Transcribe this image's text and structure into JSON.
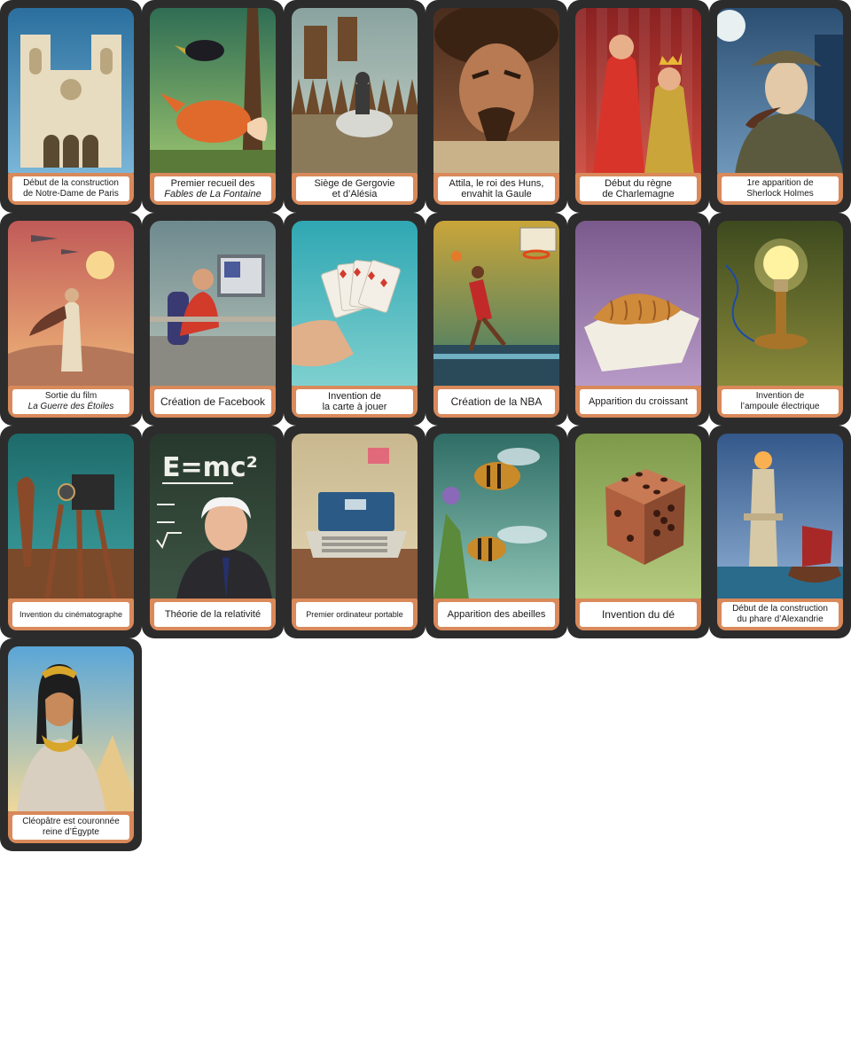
{
  "cards": [
    {
      "id": "notre-dame",
      "lines": [
        "Début de la construction",
        "de Notre-Dame de Paris"
      ],
      "italic": [
        false,
        false
      ],
      "size": "fs-10",
      "scene": "cathedral",
      "colors": {
        "sky": "#2a6f9e",
        "sky2": "#7ab6d8",
        "main": "#e8dcc0",
        "accent": "#b9a67f"
      }
    },
    {
      "id": "fables",
      "lines": [
        "Premier recueil des",
        "Fables de La Fontaine"
      ],
      "italic": [
        false,
        true
      ],
      "size": "fs-11",
      "scene": "fox",
      "colors": {
        "sky": "#2f6d54",
        "sky2": "#9bc46f",
        "main": "#e06a2c",
        "accent": "#1c1c22"
      }
    },
    {
      "id": "alesia",
      "lines": [
        "Siège de Gergovie",
        "et d’Alésia"
      ],
      "italic": [
        false,
        false
      ],
      "size": "fs-11",
      "scene": "siege",
      "colors": {
        "sky": "#8aa3a0",
        "sky2": "#c7d2c5",
        "main": "#6d4a2b",
        "accent": "#3a3a3a"
      }
    },
    {
      "id": "attila",
      "lines": [
        "Attila, le roi des Huns,",
        "envahit la Gaule"
      ],
      "italic": [
        false,
        false
      ],
      "size": "fs-11",
      "scene": "portrait",
      "colors": {
        "sky": "#4a2d1e",
        "sky2": "#8c5a3a",
        "main": "#b77a52",
        "accent": "#3b2314"
      }
    },
    {
      "id": "charlemagne",
      "lines": [
        "Début du règne",
        "de Charlemagne"
      ],
      "italic": [
        false,
        false
      ],
      "size": "fs-11",
      "scene": "crowning",
      "colors": {
        "sky": "#8a2222",
        "sky2": "#c9463a",
        "main": "#d8342a",
        "accent": "#e8b935"
      }
    },
    {
      "id": "sherlock",
      "lines": [
        "1re apparition de",
        "Sherlock Holmes"
      ],
      "italic": [
        false,
        false
      ],
      "size": "fs-10",
      "scene": "detective",
      "colors": {
        "sky": "#2b4f73",
        "sky2": "#6f97b9",
        "main": "#5b5a3f",
        "accent": "#e3c9a8"
      }
    },
    {
      "id": "star-wars",
      "lines": [
        "Sortie du film",
        "La Guerre des Étoiles"
      ],
      "italic": [
        false,
        true
      ],
      "size": "fs-10",
      "scene": "desert",
      "colors": {
        "sky": "#c05a58",
        "sky2": "#f0b779",
        "main": "#e9dcc0",
        "accent": "#6a3a2a"
      }
    },
    {
      "id": "facebook",
      "lines": [
        "Création de Facebook"
      ],
      "italic": [
        false
      ],
      "size": "fs-12",
      "scene": "computer",
      "colors": {
        "sky": "#6e8a8f",
        "sky2": "#b7c3b8",
        "main": "#d23a2a",
        "accent": "#4a5a9a"
      }
    },
    {
      "id": "cards",
      "lines": [
        "Invention de",
        "la carte à jouer"
      ],
      "italic": [
        false,
        false
      ],
      "size": "fs-11",
      "scene": "playing-cards",
      "colors": {
        "sky": "#2fa7b3",
        "sky2": "#7fd0cf",
        "main": "#f4efe6",
        "accent": "#d23b2d"
      }
    },
    {
      "id": "nba",
      "lines": [
        "Création de la NBA"
      ],
      "italic": [
        false
      ],
      "size": "fs-12",
      "scene": "basketball",
      "colors": {
        "sky": "#c9a53a",
        "sky2": "#3b7a6a",
        "main": "#c22a2a",
        "accent": "#6a3a22"
      }
    },
    {
      "id": "croissant",
      "lines": [
        "Apparition du croissant"
      ],
      "italic": [
        false
      ],
      "size": "fs-11",
      "scene": "croissant",
      "colors": {
        "sky": "#7a5a8c",
        "sky2": "#b79ac7",
        "main": "#cf8a3a",
        "accent": "#f2ede2"
      }
    },
    {
      "id": "ampoule",
      "lines": [
        "Invention de",
        "l’ampoule électrique"
      ],
      "italic": [
        false,
        false
      ],
      "size": "fs-10",
      "scene": "bulb",
      "colors": {
        "sky": "#3d4a1e",
        "sky2": "#8a8a3a",
        "main": "#fff2a0",
        "accent": "#a8742a"
      }
    },
    {
      "id": "cinema",
      "lines": [
        "Invention du cinématographe"
      ],
      "italic": [
        false
      ],
      "size": "fs-9",
      "scene": "projector",
      "colors": {
        "sky": "#1e6a6a",
        "sky2": "#3fa3a3",
        "main": "#8a4a2a",
        "accent": "#2b2b2b"
      }
    },
    {
      "id": "relativite",
      "lines": [
        "Théorie de la relativité"
      ],
      "italic": [
        false
      ],
      "size": "fs-11",
      "scene": "blackboard",
      "colors": {
        "sky": "#27382c",
        "sky2": "#3d5444",
        "main": "#f0f0ea",
        "accent": "#26306a"
      }
    },
    {
      "id": "portable",
      "lines": [
        "Premier ordinateur portable"
      ],
      "italic": [
        false
      ],
      "size": "fs-9",
      "scene": "laptop",
      "colors": {
        "sky": "#c9b88f",
        "sky2": "#e2d5b2",
        "main": "#d8d5c8",
        "accent": "#2b5a86"
      }
    },
    {
      "id": "abeilles",
      "lines": [
        "Apparition des abeilles"
      ],
      "italic": [
        false
      ],
      "size": "fs-11",
      "scene": "bees",
      "colors": {
        "sky": "#2f6d66",
        "sky2": "#8cc2b3",
        "main": "#c98a2a",
        "accent": "#2a1e14"
      }
    },
    {
      "id": "de",
      "lines": [
        "Invention du dé"
      ],
      "italic": [
        false
      ],
      "size": "fs-12",
      "scene": "dice",
      "colors": {
        "sky": "#7d9a4a",
        "sky2": "#b5cb7f",
        "main": "#b0603e",
        "accent": "#3a1a10"
      }
    },
    {
      "id": "phare",
      "lines": [
        "Début de la construction",
        "du phare d’Alexandrie"
      ],
      "italic": [
        false,
        false
      ],
      "size": "fs-10",
      "scene": "lighthouse",
      "colors": {
        "sky": "#34588a",
        "sky2": "#8fb0d4",
        "main": "#d7c9a6",
        "accent": "#a82828"
      }
    },
    {
      "id": "cleopatre",
      "lines": [
        "Cléopâtre est couronnée",
        "reine d’Égypte"
      ],
      "italic": [
        false,
        false
      ],
      "size": "fs-10",
      "scene": "egypt",
      "colors": {
        "sky": "#5aa6d8",
        "sky2": "#f0d89a",
        "main": "#c88a5a",
        "accent": "#d8a62a"
      }
    }
  ]
}
